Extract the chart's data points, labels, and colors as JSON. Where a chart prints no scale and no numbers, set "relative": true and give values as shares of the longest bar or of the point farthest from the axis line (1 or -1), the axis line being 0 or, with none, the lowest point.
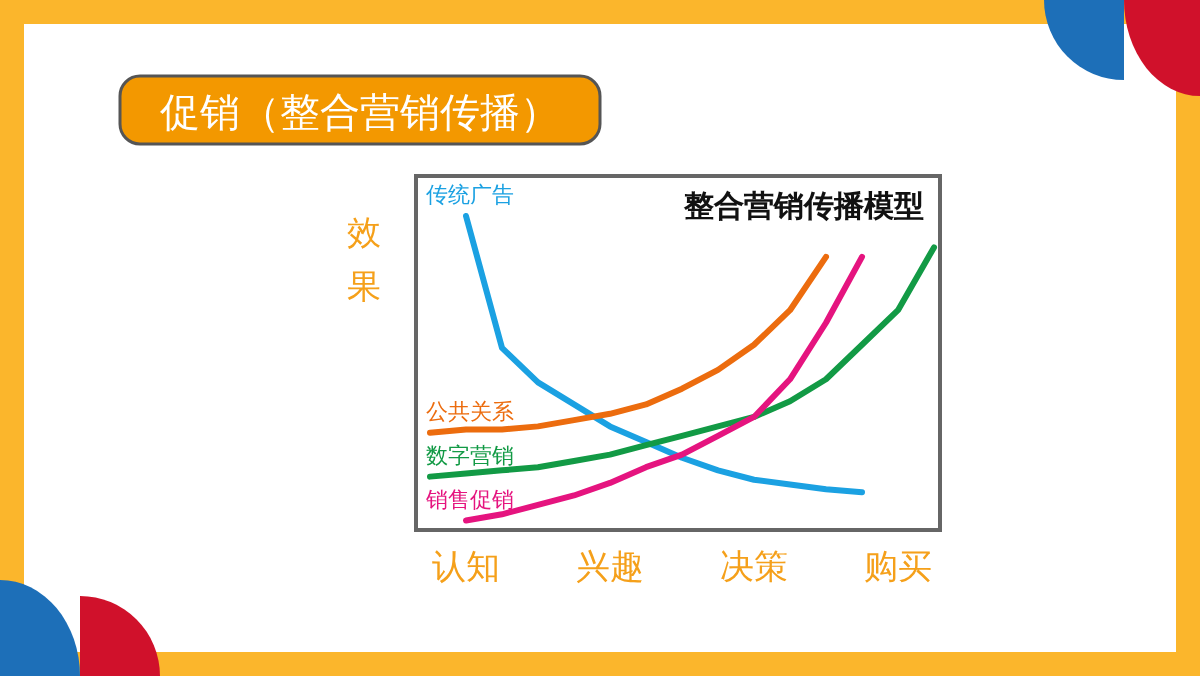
{
  "chart_data": {
    "type": "line",
    "title": "促销（整合营销传播）",
    "ylabel": "效果",
    "annotations": [
      "整合营销传播模型"
    ],
    "relative": true,
    "legend": false,
    "marker": "none",
    "grid": false,
    "line_style": "solid",
    "categories": [
      null,
      "认知",
      null,
      null,
      null,
      "兴趣",
      null,
      null,
      null,
      "决策",
      null,
      null,
      null,
      "购买",
      null
    ],
    "series": [
      {
        "name": "传统广告",
        "color": "#1ba1e2",
        "values": [
          null,
          1.0,
          0.58,
          0.47,
          0.4,
          0.33,
          0.28,
          0.23,
          0.19,
          0.16,
          0.145,
          0.13,
          0.12,
          null,
          null
        ]
      },
      {
        "name": "公共关系",
        "color": "#ec6c0e",
        "values": [
          0.31,
          0.32,
          0.32,
          0.33,
          0.35,
          0.37,
          0.4,
          0.45,
          0.51,
          0.59,
          0.7,
          0.87,
          null,
          null,
          null
        ]
      },
      {
        "name": "数字营销",
        "color": "#129a45",
        "values": [
          0.17,
          0.18,
          0.19,
          0.2,
          0.22,
          0.24,
          0.27,
          0.3,
          0.33,
          0.36,
          0.41,
          0.48,
          0.59,
          0.7,
          0.9
        ]
      },
      {
        "name": "销售促销",
        "color": "#e5147f",
        "values": [
          null,
          0.03,
          0.05,
          0.08,
          0.11,
          0.15,
          0.2,
          0.24,
          0.3,
          0.36,
          0.48,
          0.66,
          0.87,
          null,
          null
        ]
      }
    ]
  }
}
